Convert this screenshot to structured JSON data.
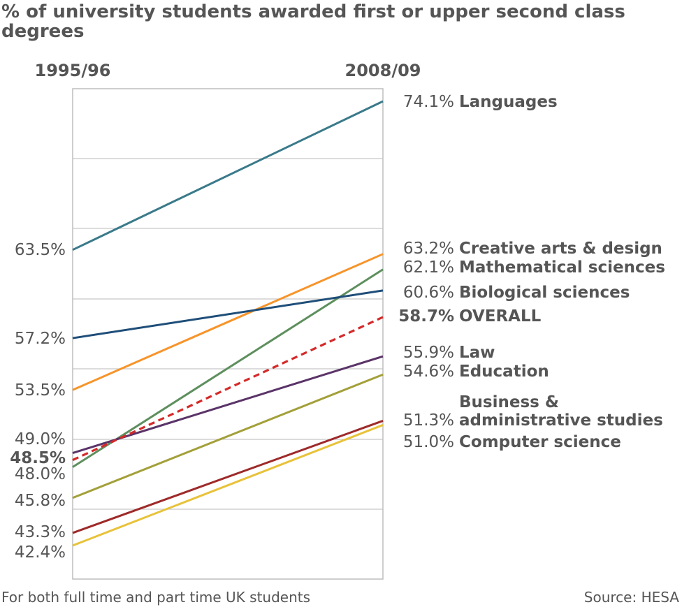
{
  "chart_data": {
    "type": "line",
    "title_lines": [
      "% of university students awarded first or upper second class",
      "degrees"
    ],
    "x": [
      "1995/96",
      "2008/09"
    ],
    "grid": true,
    "series": [
      {
        "name": "Languages",
        "values": [
          63.5,
          74.1
        ],
        "left_label": "63.5%",
        "right_label": "74.1%",
        "color": "#3a7a8a",
        "dashed": false,
        "bold": false
      },
      {
        "name": "Creative arts & design",
        "values": [
          53.5,
          63.2
        ],
        "left_label": "53.5%",
        "right_label": "63.2%",
        "color": "#f7942a",
        "dashed": false,
        "bold": false
      },
      {
        "name": "Mathematical sciences",
        "values": [
          48.0,
          62.1
        ],
        "left_label": "48.0%",
        "right_label": "62.1%",
        "color": "#5e8f5e",
        "dashed": false,
        "bold": false
      },
      {
        "name": "Biological sciences",
        "values": [
          57.2,
          60.6
        ],
        "left_label": "57.2%",
        "right_label": "60.6%",
        "color": "#1f4e79",
        "dashed": false,
        "bold": false
      },
      {
        "name": "OVERALL",
        "values": [
          48.5,
          58.7
        ],
        "left_label": "48.5%",
        "right_label": "58.7%",
        "color": "#d42a2a",
        "dashed": true,
        "bold": true
      },
      {
        "name": "Law",
        "values": [
          49.0,
          55.9
        ],
        "left_label": "49.0%",
        "right_label": "55.9%",
        "color": "#5a3468",
        "dashed": false,
        "bold": false
      },
      {
        "name": "Education",
        "values": [
          45.8,
          54.6
        ],
        "left_label": "45.8%",
        "right_label": "54.6%",
        "color": "#a3a03a",
        "dashed": false,
        "bold": false
      },
      {
        "name": "Business & administrative studies",
        "name_lines": [
          "Business &",
          "administrative studies"
        ],
        "values": [
          43.3,
          51.3
        ],
        "left_label": "43.3%",
        "right_label": "51.3%",
        "color": "#9e2a2a",
        "dashed": false,
        "bold": false
      },
      {
        "name": "Computer science",
        "values": [
          42.4,
          51.0
        ],
        "left_label": "42.4%",
        "right_label": "51.0%",
        "color": "#e8c23a",
        "dashed": false,
        "bold": false
      }
    ],
    "footnote": "For both full time and part time UK students",
    "source": "Source: HESA"
  }
}
